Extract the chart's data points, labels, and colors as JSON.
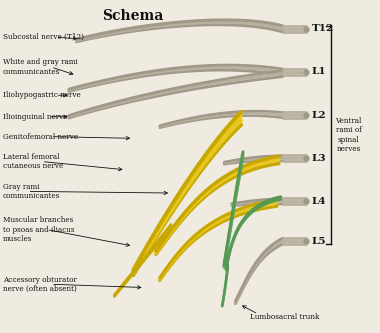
{
  "title": "Schema",
  "background_color": "#f0ebe0",
  "nerve_labels_left": [
    "Subcostal nerve (T12)",
    "White and gray rami\ncommunicantes",
    "Iliohypogastric nerve",
    "Ilioinguinal nerve",
    "Genitofemoral nerve",
    "Lateral femoral\ncutaneous nerve",
    "Gray rami\ncommunicantes",
    "Muscular branches\nto psoas and iliacus\nmuscles",
    "Accessory obturator\nnerve (often absent)"
  ],
  "nerve_labels_right": [
    "T12",
    "L1",
    "L2",
    "L3",
    "L4",
    "L5"
  ],
  "bracket_label": "Ventral\nrami of\nspinal\nnerves",
  "bottom_label": "Lumbosacral trunk",
  "level_y": {
    "T12": 9.15,
    "L1": 7.85,
    "L2": 6.55,
    "L3": 5.25,
    "L4": 3.95,
    "L5": 2.75
  },
  "colors": {
    "gray_nerve": "#b8b0a0",
    "gray_nerve_dark": "#a09888",
    "yellow_nerve": "#e8c820",
    "yellow_nerve_dark": "#c8a800",
    "green_nerve": "#78b878",
    "green_nerve_dark": "#559955",
    "background": "#f0ebe0",
    "text": "#111111",
    "line": "#111111"
  }
}
